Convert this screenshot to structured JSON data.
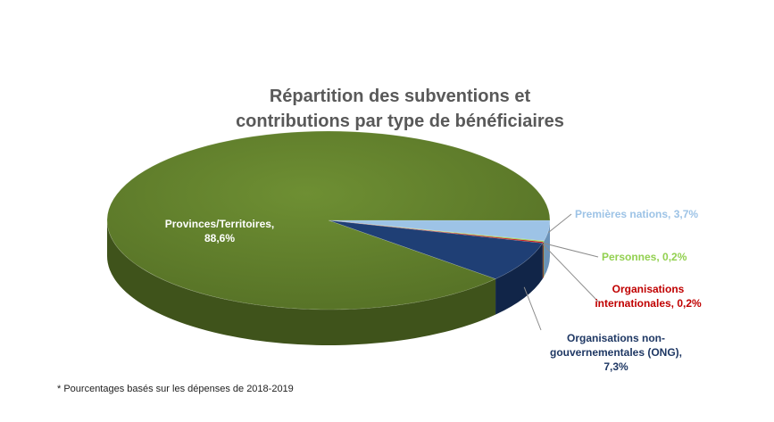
{
  "chart_data": {
    "type": "pie",
    "title_lines": [
      "Répartition des subventions et",
      "contributions par type de bénéficiaires"
    ],
    "slices": [
      {
        "name": "Provinces/Territoires,",
        "label_line2": "88,6%",
        "value": 88.6,
        "color": "#5f7d2b",
        "side": "#3f531b",
        "label_color": "#ffffff"
      },
      {
        "name": "Premières nations,",
        "label_line2": "3,7%",
        "value": 3.7,
        "color": "#9dc3e6",
        "side": "#6a92b8",
        "label_color": "#9dc3e6"
      },
      {
        "name": "Personnes,",
        "label_line2": "0,2%",
        "value": 0.2,
        "color": "#92d050",
        "side": "#6a9a3a",
        "label_color": "#92d050"
      },
      {
        "name": "Organisations internationales,",
        "label_line2": "0,2%",
        "value": 0.2,
        "color": "#c00000",
        "side": "#800000",
        "label_color": "#c00000"
      },
      {
        "name": "Organisations non-gouvernementales (ONG),",
        "label_line2": "7,3%",
        "value": 7.3,
        "color": "#1f3f75",
        "side": "#112548",
        "label_color": "#1f3864"
      }
    ],
    "legend": "none"
  },
  "labels": {
    "provinces": {
      "line1": "Provinces/Territoires,",
      "line2": "88,6%"
    },
    "premieres": {
      "text": "Premières nations, 3,7%"
    },
    "personnes": {
      "text": "Personnes, 0,2%"
    },
    "internationales": {
      "line1": "Organisations",
      "line2": "internationales, 0,2%"
    },
    "ong": {
      "line1": "Organisations non-",
      "line2": "gouvernementales (ONG),",
      "line3": "7,3%"
    }
  },
  "footnote": "* Pourcentages basés sur les dépenses de 2018-2019"
}
